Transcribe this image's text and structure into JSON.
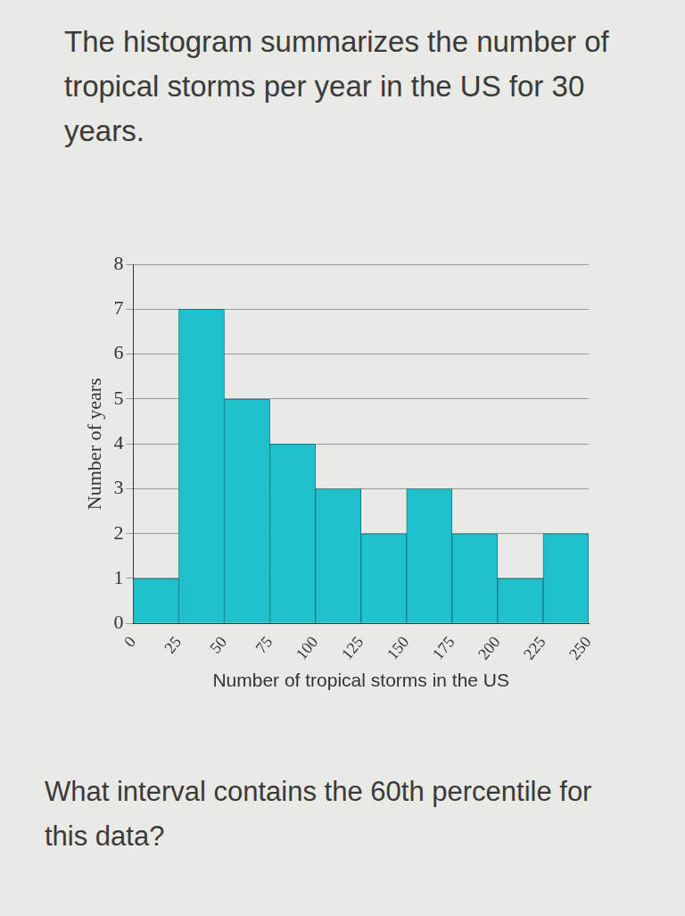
{
  "chart_data": {
    "type": "histogram",
    "title": "The histogram summarizes the number of tropical storms per year in the US for 30 years.",
    "annotation": "What interval contains the 60th percentile for this data?",
    "x_label": "Number of tropical storms in the US",
    "y_label": "Number of years",
    "bins": [
      0,
      25,
      50,
      75,
      100,
      125,
      150,
      175,
      200,
      225,
      250
    ],
    "values": [
      1,
      7,
      5,
      4,
      3,
      2,
      3,
      2,
      1,
      2
    ],
    "color": "#1fc2cc",
    "xlim": [
      0,
      250
    ],
    "xticks": [
      0,
      25,
      50,
      75,
      100,
      125,
      150,
      175,
      200,
      225,
      250
    ],
    "ylim": [
      0,
      8
    ],
    "yticks": [
      0,
      1,
      2,
      3,
      4,
      5,
      6,
      7,
      8
    ],
    "grid": true
  }
}
